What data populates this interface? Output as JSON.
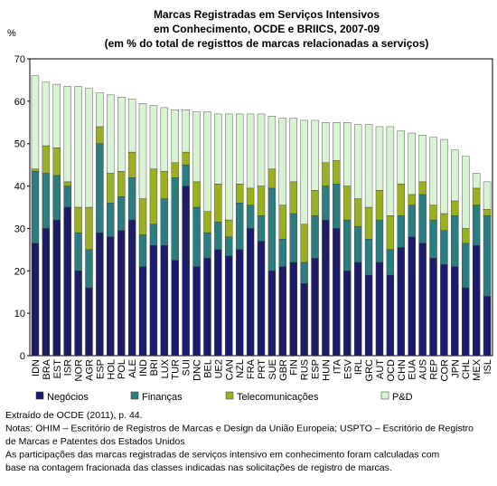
{
  "chart_data": {
    "type": "stacked_bar",
    "title": [
      "Marcas Registradas em Serviços Intensivos",
      "em Conhecimento,  OCDE e BRIICS, 2007-09",
      "(em % do total de registtos de marcas relacionadas a serviços)"
    ],
    "y_label": "%",
    "categories": [
      "IDN",
      "BRA",
      "EST",
      "ISR",
      "NOR",
      "AGR",
      "ESP",
      "HOL",
      "POL",
      "ALE",
      "IND",
      "BRI",
      "LUX",
      "TUR",
      "SUI",
      "DNC",
      "BEL",
      "UE2",
      "CAN",
      "NZL",
      "FRA",
      "PRT",
      "SUE",
      "GBR",
      "FIN",
      "RUS",
      "ESP",
      "HUN",
      "ITA",
      "ESV",
      "IRL",
      "GRC",
      "AUT",
      "OCD",
      "CHN",
      "EUA",
      "AUS",
      "REP",
      "COR",
      "JPN",
      "CHL",
      "MEX",
      "ISL"
    ],
    "series": [
      {
        "name": "Negócios",
        "color": "#1c1c6b",
        "values": [
          26.5,
          30,
          32,
          35,
          20,
          16,
          29,
          28,
          29.5,
          32,
          21,
          26,
          26,
          22.5,
          40,
          21,
          23,
          25,
          23.5,
          25,
          30,
          27,
          20,
          21,
          22,
          17,
          23,
          32,
          30,
          20,
          22,
          19,
          22,
          19,
          25.5,
          28,
          26.5,
          23,
          21.5,
          21,
          16,
          26,
          14
        ]
      },
      {
        "name": "Finanças",
        "color": "#2b7d80",
        "values": [
          17,
          13,
          10.5,
          5,
          9,
          9,
          21,
          8,
          8,
          10,
          7.5,
          5,
          11,
          19.5,
          5,
          14,
          6,
          6.5,
          4.5,
          11,
          5.5,
          6,
          19.5,
          6.5,
          11.5,
          5,
          10,
          8,
          10.5,
          12,
          8.5,
          8.5,
          10,
          6,
          7.5,
          7.5,
          11.5,
          9,
          8,
          12,
          10.5,
          9.5,
          19
        ]
      },
      {
        "name": "Telecomunicações",
        "color": "#99b021",
        "values": [
          0.5,
          6.5,
          6.5,
          1,
          6,
          10,
          4,
          7,
          6,
          6,
          8.5,
          13,
          6.5,
          3.5,
          3,
          6,
          5,
          9,
          4,
          4.5,
          4,
          7,
          4.5,
          8,
          7.5,
          9,
          6,
          5.5,
          5.5,
          8,
          6.5,
          7.5,
          7,
          8,
          7.5,
          2.5,
          3,
          3.5,
          4,
          3.5,
          3.5,
          4,
          1.5
        ]
      },
      {
        "name": "P&D",
        "color": "#d9f2d4",
        "values": [
          22,
          15,
          15,
          22.5,
          28.5,
          28,
          8,
          18.5,
          17.5,
          12.5,
          22.5,
          15,
          15,
          12.5,
          10,
          16.5,
          23.5,
          16.5,
          25,
          16.5,
          17.5,
          17,
          12.5,
          20.5,
          15,
          24.5,
          16.5,
          9.5,
          9,
          15,
          17.5,
          19.5,
          15,
          21,
          12.5,
          14.5,
          11,
          16,
          17.5,
          12,
          17,
          3.5,
          6.5
        ]
      }
    ],
    "ylim": [
      0,
      70
    ],
    "yticks": [
      0,
      10,
      20,
      30,
      40,
      50,
      60,
      70
    ],
    "notes": [
      "Extraído de OCDE (2011), p. 44.",
      "Notas: OHIM – Escritório de Registros de Marcas e Design da União Europeia; USPTO – Escritório de Registro",
      "de Marcas e Patentes dos Estados Unidos",
      "As participações das marcas registradas de serviços intensivo em conhecimento foram calculadas com",
      "base na contagem fracionada das classes indicadas nas solicitações de registro de marcas."
    ]
  }
}
